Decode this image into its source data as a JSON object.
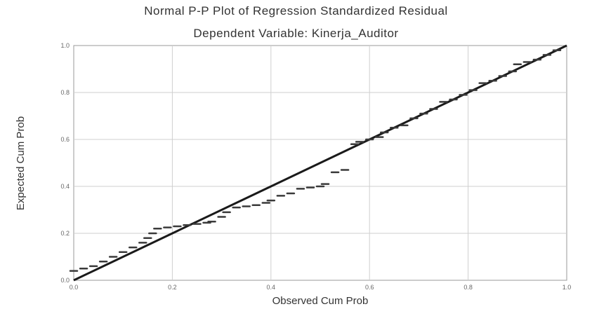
{
  "chart_data": {
    "type": "scatter",
    "title": "Normal P-P Plot of Regression Standardized Residual",
    "subtitle": "Dependent Variable: Kinerja_Auditor",
    "xlabel": "Observed Cum Prob",
    "ylabel": "Expected Cum Prob",
    "xlim": [
      0.0,
      1.0
    ],
    "ylim": [
      0.0,
      1.0
    ],
    "xticks": [
      "0.0",
      "0.2",
      "0.4",
      "0.6",
      "0.8",
      "1.0"
    ],
    "yticks": [
      "0.0",
      "0.2",
      "0.4",
      "0.6",
      "0.8",
      "1.0"
    ],
    "grid": true,
    "reference_line": [
      [
        0.0,
        0.0
      ],
      [
        1.0,
        1.0
      ]
    ],
    "points": [
      [
        0.0,
        0.04
      ],
      [
        0.02,
        0.05
      ],
      [
        0.04,
        0.06
      ],
      [
        0.06,
        0.08
      ],
      [
        0.08,
        0.1
      ],
      [
        0.1,
        0.12
      ],
      [
        0.12,
        0.14
      ],
      [
        0.14,
        0.16
      ],
      [
        0.15,
        0.18
      ],
      [
        0.16,
        0.2
      ],
      [
        0.17,
        0.22
      ],
      [
        0.19,
        0.225
      ],
      [
        0.21,
        0.23
      ],
      [
        0.23,
        0.235
      ],
      [
        0.25,
        0.24
      ],
      [
        0.27,
        0.245
      ],
      [
        0.28,
        0.25
      ],
      [
        0.3,
        0.27
      ],
      [
        0.31,
        0.29
      ],
      [
        0.33,
        0.31
      ],
      [
        0.35,
        0.315
      ],
      [
        0.37,
        0.32
      ],
      [
        0.39,
        0.33
      ],
      [
        0.4,
        0.34
      ],
      [
        0.42,
        0.36
      ],
      [
        0.44,
        0.37
      ],
      [
        0.46,
        0.39
      ],
      [
        0.48,
        0.395
      ],
      [
        0.5,
        0.4
      ],
      [
        0.51,
        0.41
      ],
      [
        0.53,
        0.46
      ],
      [
        0.55,
        0.47
      ],
      [
        0.57,
        0.58
      ],
      [
        0.58,
        0.59
      ],
      [
        0.6,
        0.6
      ],
      [
        0.62,
        0.61
      ],
      [
        0.63,
        0.63
      ],
      [
        0.65,
        0.65
      ],
      [
        0.67,
        0.66
      ],
      [
        0.69,
        0.69
      ],
      [
        0.71,
        0.71
      ],
      [
        0.73,
        0.73
      ],
      [
        0.75,
        0.76
      ],
      [
        0.77,
        0.77
      ],
      [
        0.79,
        0.79
      ],
      [
        0.81,
        0.81
      ],
      [
        0.83,
        0.84
      ],
      [
        0.85,
        0.85
      ],
      [
        0.87,
        0.87
      ],
      [
        0.89,
        0.89
      ],
      [
        0.9,
        0.92
      ],
      [
        0.92,
        0.93
      ],
      [
        0.94,
        0.94
      ],
      [
        0.96,
        0.96
      ],
      [
        0.98,
        0.98
      ]
    ]
  }
}
